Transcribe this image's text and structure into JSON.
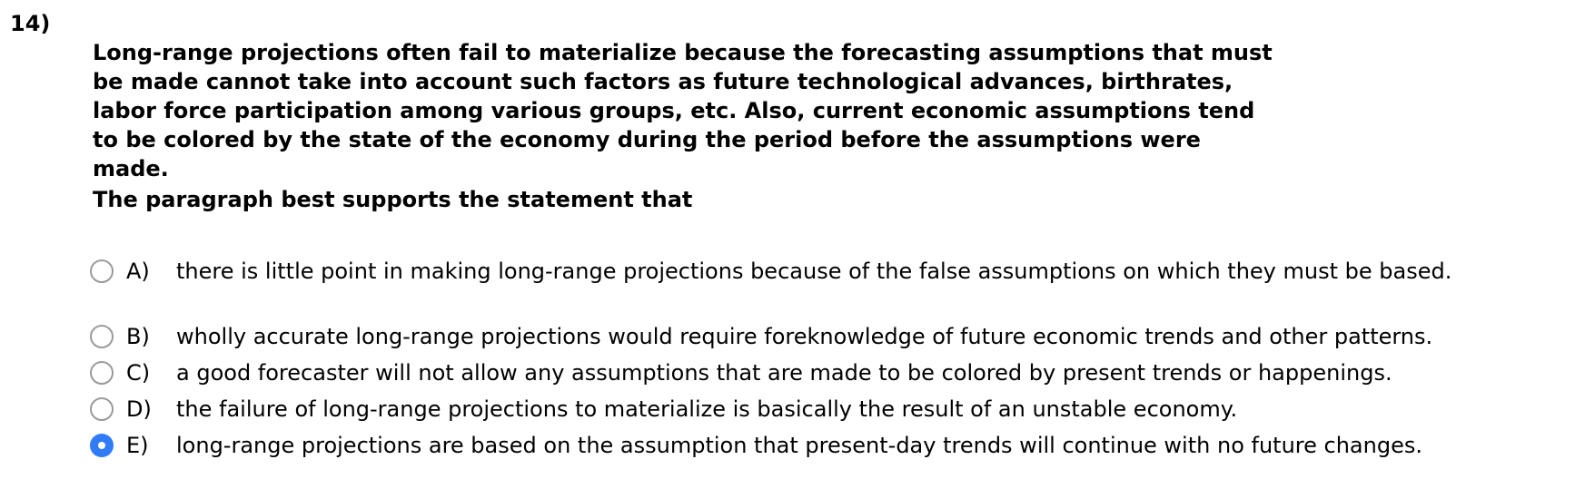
{
  "question": {
    "number": "14)",
    "lines": [
      "Long-range projections often fail to materialize because the forecasting assumptions that must",
      "be made cannot take into account such factors as future technological advances, birthrates,",
      "labor force participation among various groups, etc. Also, current economic assumptions tend",
      "to be colored by the state of the economy during the period before the assumptions were",
      "made."
    ],
    "prompt": "The paragraph best supports the statement that"
  },
  "options": [
    {
      "letter": "A)",
      "text": "there is little point in making long-range projections because of the false assumptions on which they must be based.",
      "selected": false
    },
    {
      "letter": "B)",
      "text": "wholly accurate long-range projections would require foreknowledge of future economic trends and other patterns.",
      "selected": false
    },
    {
      "letter": "C)",
      "text": "a good forecaster will not allow any assumptions that are made to be colored by present trends or happenings.",
      "selected": false
    },
    {
      "letter": "D)",
      "text": "the failure of long-range projections to materialize is basically the result of an unstable economy.",
      "selected": false
    },
    {
      "letter": "E)",
      "text": "long-range projections are based on the assumption that present-day trends will continue with no future changes.",
      "selected": true
    }
  ],
  "colors": {
    "selected_radio": "#2f7cf6",
    "unselected_radio_border": "#9a9a9a"
  }
}
